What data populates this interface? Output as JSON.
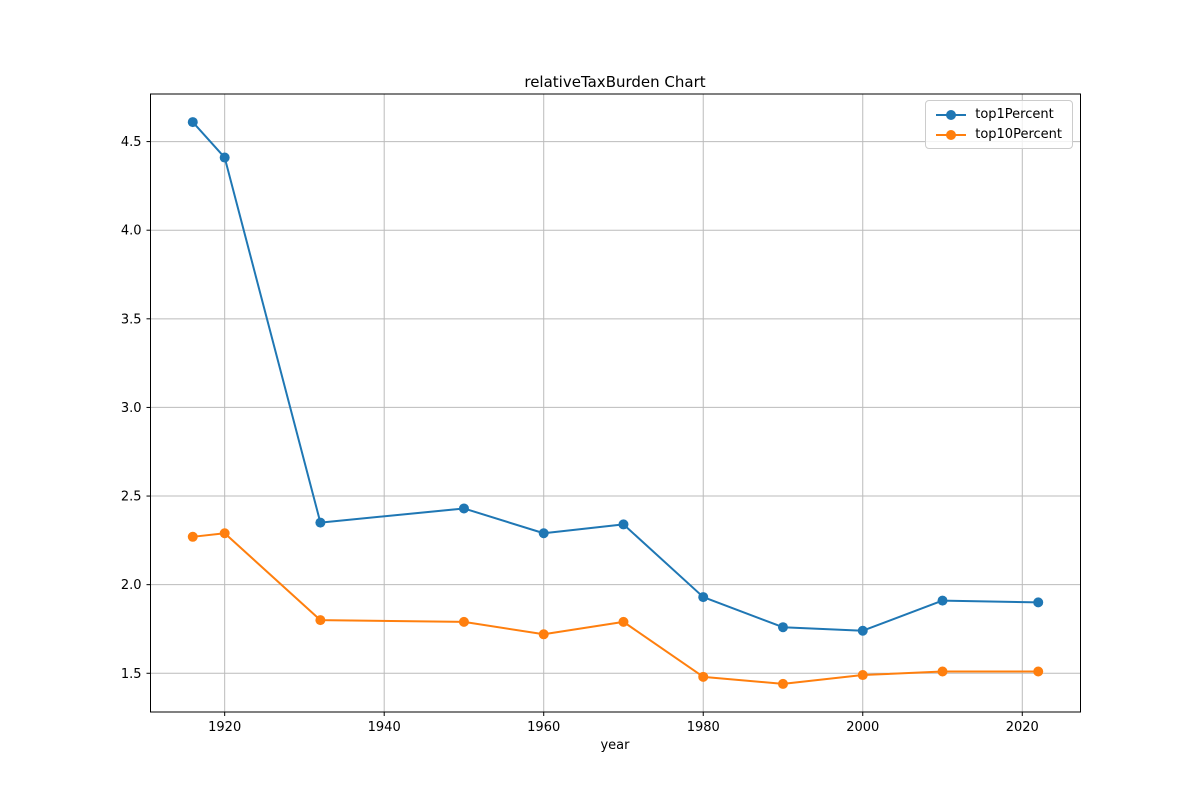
{
  "chart_data": {
    "type": "line",
    "title": "relativeTaxBurden Chart",
    "xlabel": "year",
    "ylabel": "",
    "x": [
      1916,
      1920,
      1932,
      1950,
      1960,
      1970,
      1980,
      1990,
      2000,
      2010,
      2022
    ],
    "series": [
      {
        "name": "top1Percent",
        "color": "#1f77b4",
        "values": [
          4.61,
          4.41,
          2.35,
          2.43,
          2.29,
          2.34,
          1.93,
          1.76,
          1.74,
          1.91,
          1.9
        ]
      },
      {
        "name": "top10Percent",
        "color": "#ff7f0e",
        "values": [
          2.27,
          2.29,
          1.8,
          1.79,
          1.72,
          1.79,
          1.48,
          1.44,
          1.49,
          1.51,
          1.51
        ]
      }
    ],
    "xlim": [
      1910.7,
      2027.3
    ],
    "ylim": [
      1.2815,
      4.7685
    ],
    "xticks": [
      1920,
      1940,
      1960,
      1980,
      2000,
      2020
    ],
    "yticks": [
      1.5,
      2.0,
      2.5,
      3.0,
      3.5,
      4.0,
      4.5
    ],
    "grid": true,
    "legend_position": "upper right",
    "colors": {
      "grid": "#bbbbbb",
      "spine": "#000000",
      "tick_label": "#000000",
      "background": "#ffffff"
    }
  }
}
